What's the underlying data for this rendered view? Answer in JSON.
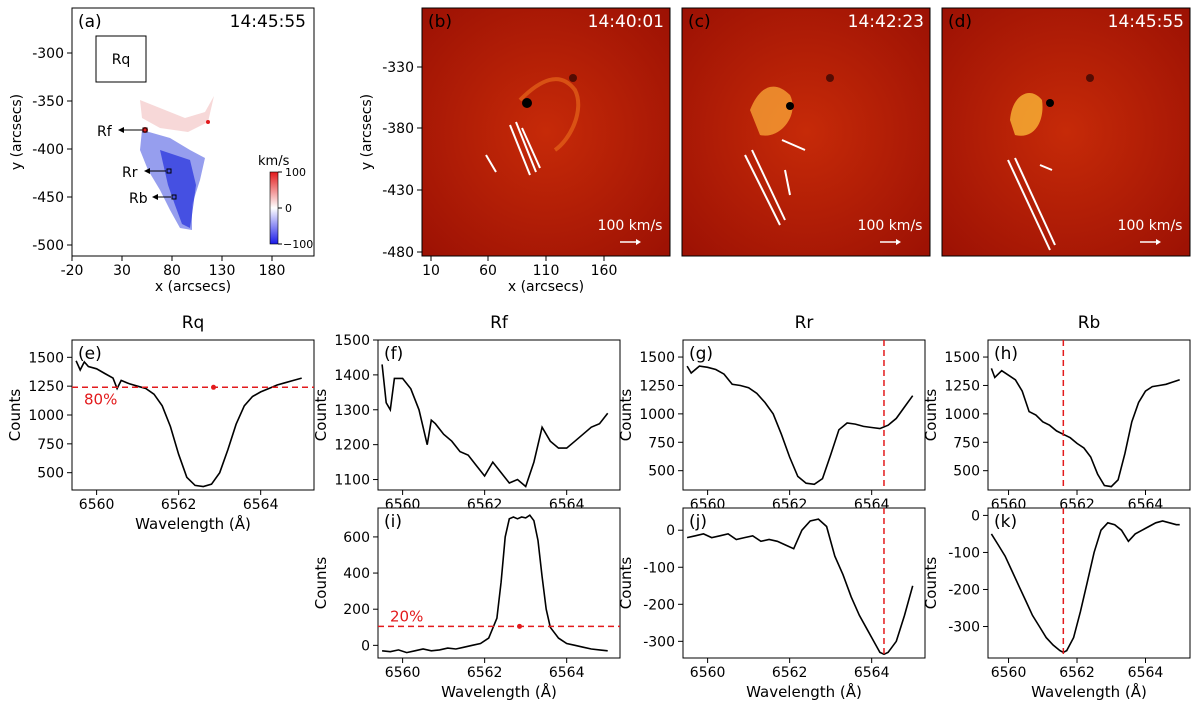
{
  "colors": {
    "line": "#000000",
    "red": "#e31a1c",
    "axis": "#000000",
    "blue": "#2f3de8",
    "map_red1": "#9b0d02",
    "map_red2": "#c21c08",
    "map_red3": "#e05a0c",
    "bright": "#ffe07a"
  },
  "top_panels": [
    {
      "label": "(a)",
      "time": "14:45:55",
      "rq_box": "Rq",
      "markers": [
        {
          "name": "Rf"
        },
        {
          "name": "Rr"
        },
        {
          "name": "Rb"
        }
      ],
      "colorbar": {
        "title": "km/s",
        "ticks": [
          "100",
          "0",
          "−100"
        ]
      }
    },
    {
      "label": "(b)",
      "time": "14:40:01",
      "arrow_label": "100 km/s"
    },
    {
      "label": "(c)",
      "time": "14:42:23",
      "arrow_label": "100 km/s"
    },
    {
      "label": "(d)",
      "time": "14:45:55",
      "arrow_label": "100 km/s"
    }
  ],
  "top_axes": {
    "a": {
      "xlabel": "x (arcsecs)",
      "ylabel": "y (arcsecs)",
      "xticks": [
        "-20",
        "30",
        "80",
        "130",
        "180"
      ],
      "yticks": [
        "-300",
        "-350",
        "-400",
        "-450",
        "-500"
      ]
    },
    "b": {
      "xlabel": "x (arcsecs)",
      "ylabel": "y (arcsecs)",
      "xticks": [
        "10",
        "60",
        "110",
        "160"
      ],
      "yticks": [
        "-330",
        "-380",
        "-430",
        "-480"
      ]
    }
  },
  "chart_data": [
    {
      "type": "line",
      "panel": "(e)",
      "title": "Rq",
      "xlabel": "Wavelength (Å)",
      "ylabel": "Counts",
      "xlim": [
        6559.4,
        6565.3
      ],
      "ylim": [
        350,
        1650
      ],
      "xticks": [
        6560,
        6562,
        6564
      ],
      "yticks": [
        500,
        750,
        1000,
        1250,
        1500
      ],
      "x": [
        6559.5,
        6559.6,
        6559.7,
        6559.8,
        6560.0,
        6560.2,
        6560.4,
        6560.5,
        6560.6,
        6560.8,
        6561.0,
        6561.2,
        6561.4,
        6561.6,
        6561.8,
        6562.0,
        6562.2,
        6562.4,
        6562.6,
        6562.8,
        6563.0,
        6563.2,
        6563.4,
        6563.6,
        6563.8,
        6564.0,
        6564.2,
        6564.4,
        6564.6,
        6564.8,
        6565.0
      ],
      "y": [
        1470,
        1390,
        1460,
        1420,
        1400,
        1360,
        1320,
        1230,
        1300,
        1270,
        1250,
        1230,
        1180,
        1080,
        900,
        660,
        460,
        390,
        380,
        400,
        500,
        700,
        920,
        1080,
        1160,
        1200,
        1230,
        1260,
        1280,
        1300,
        1320
      ],
      "hline": {
        "y": 1240,
        "label": "80%"
      },
      "dot_x": 6562.85
    },
    {
      "type": "line",
      "panel": "(f)",
      "title": "Rf",
      "xlabel": "",
      "ylabel": "Counts",
      "xlim": [
        6559.4,
        6565.3
      ],
      "ylim": [
        1070,
        1500
      ],
      "xticks": [
        6560,
        6562,
        6564
      ],
      "yticks": [
        1100,
        1200,
        1300,
        1400,
        1500
      ],
      "x": [
        6559.5,
        6559.6,
        6559.7,
        6559.8,
        6560.0,
        6560.2,
        6560.4,
        6560.5,
        6560.6,
        6560.7,
        6560.8,
        6561.0,
        6561.2,
        6561.4,
        6561.6,
        6561.8,
        6562.0,
        6562.2,
        6562.4,
        6562.6,
        6562.8,
        6563.0,
        6563.2,
        6563.3,
        6563.4,
        6563.6,
        6563.8,
        6564.0,
        6564.2,
        6564.4,
        6564.6,
        6564.8,
        6565.0
      ],
      "y": [
        1430,
        1320,
        1300,
        1390,
        1390,
        1360,
        1300,
        1250,
        1200,
        1270,
        1260,
        1230,
        1210,
        1180,
        1170,
        1140,
        1110,
        1150,
        1120,
        1090,
        1100,
        1080,
        1150,
        1200,
        1250,
        1210,
        1190,
        1190,
        1210,
        1230,
        1250,
        1260,
        1290
      ]
    },
    {
      "type": "line",
      "panel": "(g)",
      "title": "Rr",
      "xlabel": "",
      "ylabel": "Counts",
      "xlim": [
        6559.4,
        6565.3
      ],
      "ylim": [
        330,
        1650
      ],
      "xticks": [
        6560,
        6562,
        6564
      ],
      "yticks": [
        500,
        750,
        1000,
        1250,
        1500
      ],
      "x": [
        6559.5,
        6559.6,
        6559.8,
        6560.0,
        6560.2,
        6560.4,
        6560.6,
        6560.8,
        6561.0,
        6561.2,
        6561.4,
        6561.6,
        6561.8,
        6562.0,
        6562.2,
        6562.4,
        6562.6,
        6562.8,
        6563.0,
        6563.2,
        6563.4,
        6563.6,
        6563.8,
        6564.0,
        6564.2,
        6564.4,
        6564.6,
        6564.8,
        6565.0
      ],
      "y": [
        1420,
        1360,
        1420,
        1410,
        1390,
        1350,
        1260,
        1250,
        1230,
        1180,
        1100,
        1000,
        820,
        620,
        450,
        390,
        380,
        430,
        640,
        860,
        920,
        910,
        890,
        880,
        870,
        900,
        960,
        1060,
        1160
      ],
      "vline": 6564.3
    },
    {
      "type": "line",
      "panel": "(h)",
      "title": "Rb",
      "xlabel": "",
      "ylabel": "Counts",
      "xlim": [
        6559.4,
        6565.3
      ],
      "ylim": [
        330,
        1650
      ],
      "xticks": [
        6560,
        6562,
        6564
      ],
      "yticks": [
        500,
        750,
        1000,
        1250,
        1500
      ],
      "x": [
        6559.5,
        6559.6,
        6559.8,
        6560.0,
        6560.2,
        6560.4,
        6560.6,
        6560.8,
        6561.0,
        6561.2,
        6561.4,
        6561.6,
        6561.8,
        6562.0,
        6562.2,
        6562.4,
        6562.6,
        6562.8,
        6563.0,
        6563.2,
        6563.4,
        6563.6,
        6563.8,
        6564.0,
        6564.2,
        6564.4,
        6564.6,
        6564.8,
        6565.0
      ],
      "y": [
        1400,
        1320,
        1380,
        1340,
        1300,
        1200,
        1020,
        990,
        930,
        900,
        850,
        820,
        790,
        740,
        700,
        620,
        470,
        370,
        360,
        420,
        650,
        930,
        1100,
        1200,
        1240,
        1250,
        1260,
        1280,
        1300
      ],
      "vline": 6561.6
    },
    {
      "type": "line",
      "panel": "(i)",
      "title": "",
      "xlabel": "Wavelength (Å)",
      "ylabel": "Counts",
      "xlim": [
        6559.4,
        6565.3
      ],
      "ylim": [
        -70,
        760
      ],
      "xticks": [
        6560,
        6562,
        6564
      ],
      "yticks": [
        0,
        200,
        400,
        600
      ],
      "x": [
        6559.5,
        6559.7,
        6559.9,
        6560.1,
        6560.3,
        6560.5,
        6560.7,
        6560.9,
        6561.1,
        6561.3,
        6561.5,
        6561.7,
        6561.9,
        6562.1,
        6562.3,
        6562.4,
        6562.5,
        6562.6,
        6562.7,
        6562.8,
        6562.9,
        6563.0,
        6563.1,
        6563.2,
        6563.3,
        6563.4,
        6563.5,
        6563.6,
        6563.8,
        6564.0,
        6564.2,
        6564.4,
        6564.6,
        6564.8,
        6565.0
      ],
      "y": [
        -30,
        -35,
        -25,
        -40,
        -30,
        -20,
        -30,
        -25,
        -15,
        -20,
        -10,
        0,
        10,
        40,
        150,
        350,
        600,
        700,
        710,
        700,
        710,
        705,
        720,
        690,
        580,
        380,
        200,
        100,
        40,
        10,
        0,
        -10,
        -20,
        -25,
        -30
      ],
      "hline": {
        "y": 105,
        "label": "20%"
      },
      "dot_x": 6562.85
    },
    {
      "type": "line",
      "panel": "(j)",
      "title": "",
      "xlabel": "Wavelength (Å)",
      "ylabel": "Counts",
      "xlim": [
        6559.4,
        6565.3
      ],
      "ylim": [
        -345,
        60
      ],
      "xticks": [
        6560,
        6562,
        6564
      ],
      "yticks": [
        0,
        -100,
        -200,
        -300
      ],
      "x": [
        6559.5,
        6559.7,
        6559.9,
        6560.1,
        6560.3,
        6560.5,
        6560.7,
        6560.9,
        6561.1,
        6561.3,
        6561.5,
        6561.7,
        6561.9,
        6562.1,
        6562.3,
        6562.5,
        6562.7,
        6562.9,
        6563.1,
        6563.3,
        6563.5,
        6563.7,
        6563.9,
        6564.1,
        6564.2,
        6564.3,
        6564.4,
        6564.6,
        6564.8,
        6565.0
      ],
      "y": [
        -20,
        -15,
        -10,
        -20,
        -15,
        -10,
        -25,
        -20,
        -15,
        -30,
        -25,
        -30,
        -40,
        -50,
        0,
        25,
        30,
        10,
        -70,
        -120,
        -180,
        -230,
        -270,
        -310,
        -330,
        -335,
        -330,
        -300,
        -230,
        -150
      ],
      "vline": 6564.3
    },
    {
      "type": "line",
      "panel": "(k)",
      "title": "",
      "xlabel": "Wavelength (Å)",
      "ylabel": "Counts",
      "xlim": [
        6559.4,
        6565.3
      ],
      "ylim": [
        -385,
        20
      ],
      "xticks": [
        6560,
        6562,
        6564
      ],
      "yticks": [
        0,
        -100,
        -200,
        -300
      ],
      "x": [
        6559.5,
        6559.7,
        6559.9,
        6560.1,
        6560.3,
        6560.5,
        6560.7,
        6560.9,
        6561.1,
        6561.3,
        6561.5,
        6561.6,
        6561.7,
        6561.9,
        6562.1,
        6562.3,
        6562.5,
        6562.7,
        6562.9,
        6563.1,
        6563.3,
        6563.5,
        6563.7,
        6563.9,
        6564.1,
        6564.3,
        6564.5,
        6564.7,
        6564.9,
        6565.0
      ],
      "y": [
        -50,
        -80,
        -110,
        -150,
        -190,
        -230,
        -270,
        -300,
        -330,
        -350,
        -365,
        -370,
        -365,
        -330,
        -260,
        -180,
        -100,
        -40,
        -20,
        -25,
        -40,
        -70,
        -50,
        -40,
        -30,
        -20,
        -15,
        -20,
        -25,
        -25
      ],
      "vline": 6561.6
    }
  ]
}
